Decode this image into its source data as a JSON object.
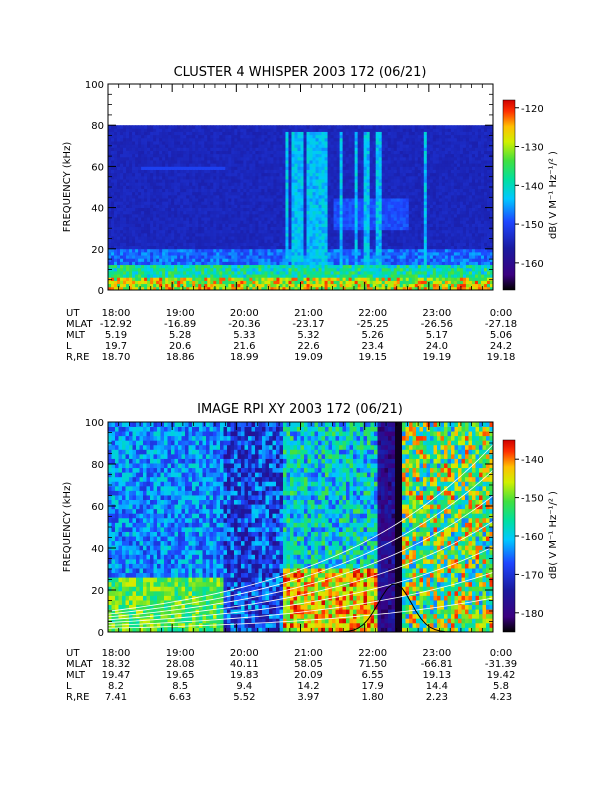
{
  "chart_data": [
    {
      "type": "heatmap",
      "title": "CLUSTER 4 WHISPER 2003 172 (06/21)",
      "ylabel": "FREQUENCY (kHz)",
      "ylim": [
        0,
        100
      ],
      "y_ticks": [
        "0",
        "20",
        "40",
        "60",
        "80",
        "100"
      ],
      "x_ticks": [
        "18:00",
        "19:00",
        "20:00",
        "21:00",
        "22:00",
        "23:00",
        "0:00"
      ],
      "data_max_freq_khz": 80,
      "colorbar": {
        "label": "dB( V M⁻¹ Hz⁻¹/² )",
        "range": [
          -167,
          -118
        ],
        "ticks": [
          "-120",
          "-130",
          "-140",
          "-150",
          "-160"
        ],
        "tick_values": [
          -120,
          -130,
          -140,
          -150,
          -160
        ]
      },
      "ephemeris": {
        "labels": [
          "UT",
          "MLAT",
          "MLT",
          "L",
          "R,RE"
        ],
        "rows": [
          [
            "18:00",
            "19:00",
            "20:00",
            "21:00",
            "22:00",
            "23:00",
            "0:00"
          ],
          [
            "-12.92",
            "-16.89",
            "-20.36",
            "-23.17",
            "-25.25",
            "-26.56",
            "-27.18"
          ],
          [
            "5.19",
            "5.28",
            "5.33",
            "5.32",
            "5.26",
            "5.17",
            "5.06"
          ],
          [
            "19.7",
            "20.6",
            "21.6",
            "22.6",
            "23.4",
            "24.0",
            "24.2"
          ],
          [
            "18.70",
            "18.86",
            "18.99",
            "19.09",
            "19.15",
            "19.19",
            "19.18"
          ]
        ]
      }
    },
    {
      "type": "heatmap",
      "title": "IMAGE RPI XY 2003 172 (06/21)",
      "ylabel": "FREQUENCY (kHz)",
      "ylim": [
        0,
        100
      ],
      "y_ticks": [
        "0",
        "20",
        "40",
        "60",
        "80",
        "100"
      ],
      "x_ticks": [
        "18:00",
        "19:00",
        "20:00",
        "21:00",
        "22:00",
        "23:00",
        "0:00"
      ],
      "colorbar": {
        "label": "dB( V M⁻¹ Hz⁻¹/² )",
        "range": [
          -185,
          -135
        ],
        "ticks": [
          "-140",
          "-150",
          "-160",
          "-170",
          "-180"
        ],
        "tick_values": [
          -140,
          -150,
          -160,
          -170,
          -180
        ]
      },
      "ephemeris": {
        "labels": [
          "UT",
          "MLAT",
          "MLT",
          "L",
          "R,RE"
        ],
        "rows": [
          [
            "18:00",
            "19:00",
            "20:00",
            "21:00",
            "22:00",
            "23:00",
            "0:00"
          ],
          [
            "18.32",
            "28.08",
            "40.11",
            "58.05",
            "71.50",
            "-66.81",
            "-31.39"
          ],
          [
            "19.47",
            "19.65",
            "19.83",
            "20.09",
            "6.55",
            "19.13",
            "19.42"
          ],
          [
            "8.2",
            "8.5",
            "9.4",
            "14.2",
            "17.9",
            "14.4",
            "5.8"
          ],
          [
            "7.41",
            "6.63",
            "5.52",
            "3.97",
            "1.80",
            "2.23",
            "4.23"
          ]
        ]
      }
    }
  ]
}
